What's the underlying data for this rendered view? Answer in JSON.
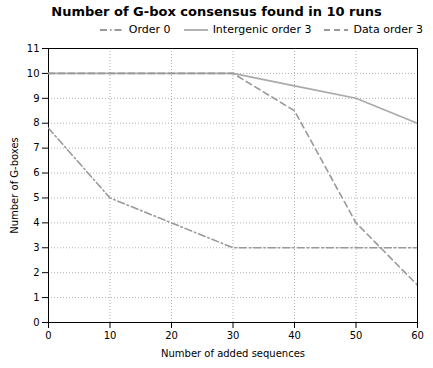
{
  "chart_data": {
    "type": "line",
    "title": "Number of G-box consensus found in 10 runs",
    "xlabel": "Number of added sequences",
    "ylabel": "Number of G-boxes",
    "x": [
      0,
      10,
      20,
      30,
      40,
      50,
      60
    ],
    "series": [
      {
        "name": "Order 0",
        "color": "#999999",
        "line_style": "dashdot",
        "values": [
          7.8,
          5.0,
          4.0,
          3.0,
          3.0,
          3.0,
          3.0
        ]
      },
      {
        "name": "Intergenic order 3",
        "color": "#aaaaaa",
        "line_style": "solid",
        "values": [
          10,
          10,
          10,
          10,
          9.5,
          9.0,
          8.0
        ]
      },
      {
        "name": "Data order 3",
        "color": "#999999",
        "line_style": "dashed",
        "values": [
          10.0,
          10.0,
          10.0,
          10.0,
          8.5,
          4.0,
          1.5
        ]
      }
    ],
    "xlim": [
      0,
      60
    ],
    "ylim": [
      0,
      11
    ],
    "xticks": [
      0,
      10,
      20,
      30,
      40,
      50,
      60
    ],
    "yticks": [
      0,
      1,
      2,
      3,
      4,
      5,
      6,
      7,
      8,
      9,
      10,
      11
    ],
    "grid": true,
    "legend": "upper right"
  }
}
